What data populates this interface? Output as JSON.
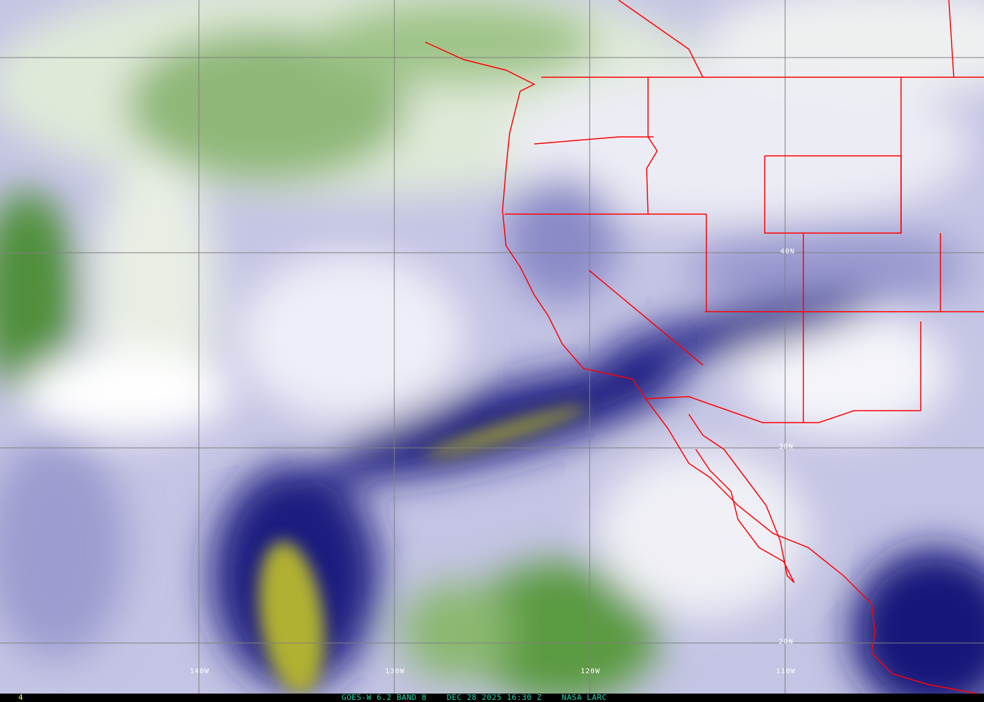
{
  "map": {
    "product": "GOES-W 6.2 BAND 8 water vapor",
    "grid_labels": {
      "longitude": [
        "140W",
        "130W",
        "120W",
        "110W"
      ],
      "latitude": [
        "40N",
        "30N",
        "20N"
      ]
    },
    "colors": {
      "moist_white": "#f2f2f8",
      "mid_lavender": "#a8a8d8",
      "dry_navy": "#101070",
      "very_dry_olive": "#a8a830",
      "high_cloud_green": "#4a8a30",
      "borders": "#ff0000",
      "grid": "#808080"
    }
  },
  "footer": {
    "frame_number": "4",
    "caption": "GOES-W 6.2 BAND 8    DEC 28 2025 16:30 Z    NASA LARC"
  }
}
